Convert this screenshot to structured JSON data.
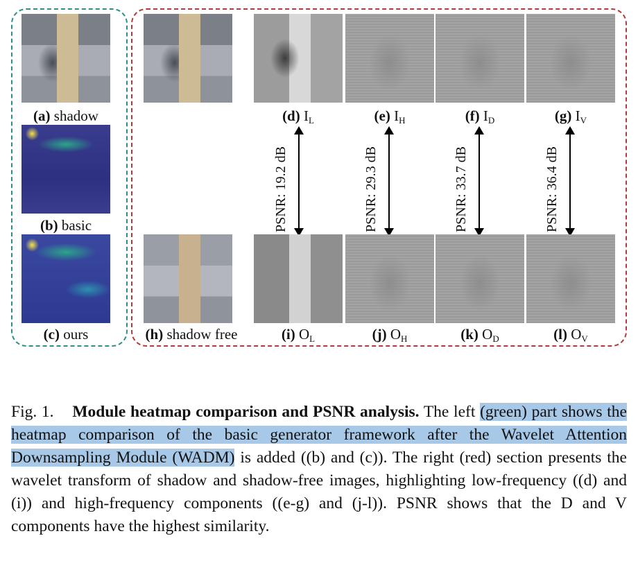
{
  "panels": {
    "left": {
      "items": [
        {
          "letter": "(a)",
          "label": "shadow"
        },
        {
          "letter": "(b)",
          "label": "basic"
        },
        {
          "letter": "(c)",
          "label": "ours"
        }
      ]
    },
    "right": {
      "top": [
        {
          "letter": "(d)",
          "label": "I",
          "sub": "L"
        },
        {
          "letter": "(e)",
          "label": "I",
          "sub": "H"
        },
        {
          "letter": "(f)",
          "label": "I",
          "sub": "D"
        },
        {
          "letter": "(g)",
          "label": "I",
          "sub": "V"
        }
      ],
      "bottom": [
        {
          "letter": "(h)",
          "label": "shadow free",
          "sub": ""
        },
        {
          "letter": "(i)",
          "label": "O",
          "sub": "L"
        },
        {
          "letter": "(j)",
          "label": "O",
          "sub": "H"
        },
        {
          "letter": "(k)",
          "label": "O",
          "sub": "D"
        },
        {
          "letter": "(l)",
          "label": "O",
          "sub": "V"
        }
      ],
      "psnr": [
        "PSNR: 19.2 dB",
        "PSNR: 29.3 dB",
        "PSNR: 33.7 dB",
        "PSNR: 36.4 dB"
      ]
    }
  },
  "caption": {
    "label": "Fig. 1.",
    "title": "Module heatmap comparison and PSNR analysis.",
    "seg1": " The left ",
    "highlight": "(green) part shows the heatmap comparison of the basic generator framework after the Wavelet Attention Downsampling Module (WADM)",
    "seg2": " is added ((b) and (c)). The right (red) section presents the wavelet transform of shadow and shadow-free images, highlighting low-frequency ((d) and (i)) and high-frequency components ((e-g) and (j-l)). PSNR shows that the D and V components have the highest similarity."
  },
  "colors": {
    "left_border": "#2f8f86",
    "right_border": "#b23a3a",
    "highlight": "#a7c8e6"
  }
}
